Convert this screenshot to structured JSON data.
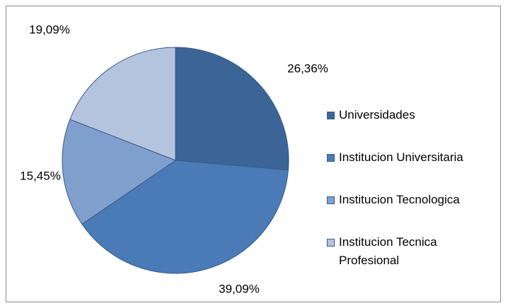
{
  "chart_data": {
    "type": "pie",
    "categories": [
      "Universidades",
      "Institucion Universitaria",
      "Institucion Tecnologica",
      "Institucion Tecnica Profesional"
    ],
    "values": [
      26.36,
      39.09,
      15.45,
      19.09
    ],
    "value_labels": [
      "26,36%",
      "39,09%",
      "15,45%",
      "19,09%"
    ],
    "colors": [
      "#3c6597",
      "#4a7bb7",
      "#7f9fcd",
      "#b4c4df"
    ],
    "legend": "right"
  }
}
